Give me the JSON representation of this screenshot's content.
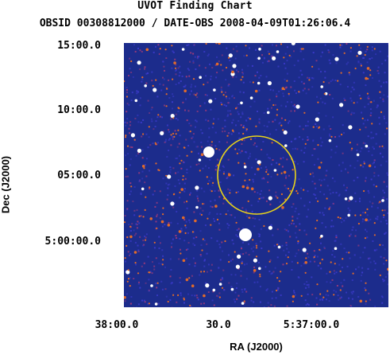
{
  "chart": {
    "title": "UVOT Finding Chart",
    "subtitle": "OBSID 00308812000 / DATE-OBS 2008-04-09T01:26:06.4",
    "xlabel": "RA (J2000)",
    "ylabel": "Dec (J2000)",
    "yticks": [
      "15:00.0",
      "10:00.0",
      "05:00.0",
      "5:00:00.0"
    ],
    "xticks": [
      "38:00.0",
      "30.0",
      "5:37:00.0"
    ]
  },
  "colors": {
    "background": "#1c2c8c",
    "noise": "#3a3ac8",
    "star_warm": "#e06a2a",
    "star_hot": "#ffffff",
    "circle": "#e8d21a"
  }
}
